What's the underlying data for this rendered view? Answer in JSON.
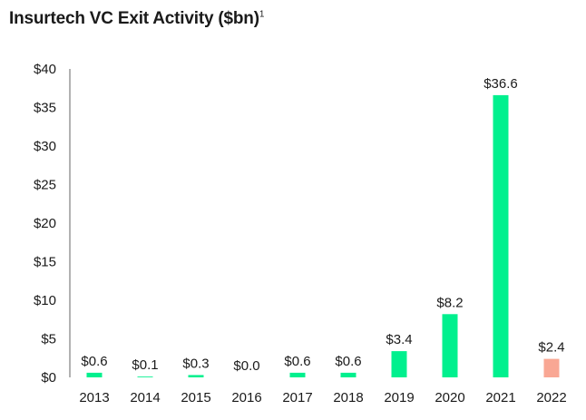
{
  "header": {
    "title": "Insurtech VC Exit Activity ($bn)",
    "footnote": "1"
  },
  "colors": {
    "default_bar": "#00f08e",
    "highlight_bar": "#f9a794",
    "axis": "#666666"
  },
  "chart_data": {
    "type": "bar",
    "title": "Insurtech VC Exit Activity ($bn)",
    "xlabel": "",
    "ylabel": "",
    "categories": [
      "2013",
      "2014",
      "2015",
      "2016",
      "2017",
      "2018",
      "2019",
      "2020",
      "2021",
      "2022"
    ],
    "values": [
      0.6,
      0.1,
      0.3,
      0.0,
      0.6,
      0.6,
      3.4,
      8.2,
      36.6,
      2.4
    ],
    "data_labels": [
      "$0.6",
      "$0.1",
      "$0.3",
      "$0.0",
      "$0.6",
      "$0.6",
      "$3.4",
      "$8.2",
      "$36.6",
      "$2.4"
    ],
    "highlight_index": 9,
    "ylim": [
      0,
      40
    ],
    "yticks": [
      0,
      5,
      10,
      15,
      20,
      25,
      30,
      35,
      40
    ],
    "ytick_labels": [
      "$0",
      "$5",
      "$10",
      "$15",
      "$20",
      "$25",
      "$30",
      "$35",
      "$40"
    ],
    "grid": false,
    "legend": "none"
  }
}
